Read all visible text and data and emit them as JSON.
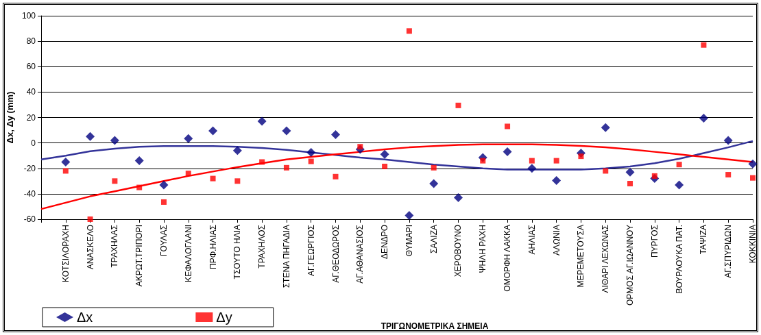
{
  "chart_data": {
    "type": "scatter",
    "xlabel": "ΤΡΙΓΩΝΟΜΕΤΡΙΚΑ ΣΗΜΕΙΑ",
    "ylabel": "Δx, Δy (mm)",
    "categories": [
      null,
      "ΚΟΤΣΙΛΟΡΑΧΗ",
      "ΑΝΑΣΚΕΛΟ",
      "ΤΡΑΧΗΛΑΣ",
      "ΑΚΡΩΤ.ΤΡΙΠΟΡΙ",
      "ΓΟΥΛΑΣ",
      "ΚΕΦΑΛΟΓΛΑΝΙ",
      "ΠΡΦ.ΗΛΙΑΣ",
      "ΤΣΟΥΤΟ ΗΛΙΑ",
      "ΤΡΑΧΗΛΟΣ",
      "ΣΤΕΝΑ ΠΗΓΑΔΙΑ",
      "ΑΓ.ΓΕΩΡΓΙΟΣ",
      "ΑΓ.ΘΕΟΔΩΡΟΣ",
      "ΑΓ.ΑΘΑΝΑΣΙΟΣ",
      "ΔΕΝΔΡΟ",
      "ΘΥΜΑΡΙ",
      "ΣΑΛΙΖΑ",
      "ΧΕΡΟΒΟΥΝΟ",
      "ΨΗΛΗ ΡΑΧΗ",
      "ΟΜΟΡΦΗ ΛΑΚΚΑ",
      "ΑΗΛΙΑΣ",
      "ΑΛΩΝΙΑ",
      "ΜΕΡΕΜΕΤΟΥΣΑ",
      "ΛΙΘΑΡΙ ΛΕΧΩΝΑΣ",
      "ΟΡΜΟΣ ΑΓ.ΙΩΑΝΝΟΥ",
      "ΠΥΡΓΟΣ",
      "ΒΟΥΡΛΟΥΚΑ ΠΑΤ.",
      "ΤΑΨΙΖΑ",
      "ΑΓ.ΣΠΥΡΙΔΩΝ",
      "ΚΟΚΚΙΝΙΑ"
    ],
    "ylim": [
      -60,
      100
    ],
    "yticks": [
      -60,
      -40,
      -20,
      0,
      20,
      40,
      60,
      80,
      100
    ],
    "grid": "y",
    "legend": "bottom left",
    "series": [
      {
        "type": "line",
        "color": "#333399",
        "marker": "none",
        "values": [
          -13,
          -10,
          -6.5,
          -4.5,
          -3,
          -2.5,
          -2.5,
          -2.5,
          -3,
          -4,
          -5.5,
          -7.5,
          -9.5,
          -11.5,
          -13,
          -15,
          -17,
          -18.5,
          -20,
          -21,
          -21,
          -21,
          -21,
          -20,
          -18.5,
          -16,
          -12.5,
          -8,
          -3.5,
          1.5
        ]
      },
      {
        "type": "line",
        "color": "#ff0000",
        "marker": "none",
        "values": [
          -52,
          -47,
          -42,
          -38,
          -34,
          -30,
          -26,
          -22.5,
          -19,
          -16,
          -13,
          -11,
          -9,
          -7,
          -5,
          -3.5,
          -2.5,
          -1.5,
          -1.2,
          -1.2,
          -1.2,
          -1.5,
          -2.3,
          -3.5,
          -5,
          -7,
          -9,
          -11,
          -13,
          -15
        ]
      },
      {
        "name": "Δx",
        "color": "#000080",
        "marker": "diamond",
        "values": [
          null,
          -15,
          5,
          2,
          -14,
          -33,
          3.5,
          9.5,
          -6,
          17,
          9.5,
          -7.5,
          6.5,
          -5,
          -9,
          -57,
          -32,
          -43,
          -11.5,
          -7,
          -20,
          -29.5,
          -8,
          12,
          -23,
          -28,
          -33,
          19.5,
          2,
          -16.5
        ]
      },
      {
        "name": "Δy",
        "color": "#ff0000",
        "marker": "square",
        "values": [
          null,
          -22,
          -60,
          -30,
          -35,
          -46.5,
          -24,
          -28,
          -30,
          -15,
          -19.5,
          -14.5,
          -26.5,
          -3,
          -18.5,
          88,
          -19.5,
          29.5,
          -14,
          13,
          -14,
          -14,
          -10.5,
          -22,
          -32,
          -26,
          -17,
          77,
          -25,
          -27.5
        ]
      }
    ]
  }
}
